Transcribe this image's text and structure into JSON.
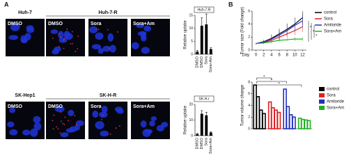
{
  "panel_labels": [
    "A",
    "B"
  ],
  "image_rows": [
    {
      "groups": [
        "Huh-7",
        "Huh-7-R"
      ],
      "labels": [
        "DMSO",
        "DMSO",
        "Sora",
        "Sora+Am"
      ]
    },
    {
      "groups": [
        "SK-Hep1",
        "SK-H-R"
      ],
      "labels": [
        "DMSO",
        "DMSO",
        "Sora",
        "Sora+Am"
      ]
    }
  ],
  "chart_data": [
    {
      "type": "bar",
      "title": "Huh-7-R",
      "y_label": "Relative uptake",
      "categories": [
        "DMSO",
        "DMSO",
        "Sora",
        "Sora+Am"
      ],
      "values": [
        1,
        11,
        11.5,
        2
      ],
      "errors": [
        0.5,
        3,
        4,
        0.5
      ],
      "color": "#000000",
      "ylim": [
        0,
        15
      ],
      "yticks": [
        0,
        5,
        10,
        15
      ]
    },
    {
      "type": "bar",
      "title": "SK-H-r",
      "y_label": "Relative uptake",
      "categories": [
        "DMSO",
        "DMSO",
        "Sora",
        "Sora+Am"
      ],
      "values": [
        1,
        14,
        13,
        2
      ],
      "errors": [
        0.5,
        2,
        2,
        0.5
      ],
      "color": "#000000",
      "ylim": [
        0,
        20
      ],
      "yticks": [
        0,
        10,
        20
      ]
    },
    {
      "type": "line",
      "x_label": "Day",
      "y_label": "Tumor size (Fold change)",
      "x": [
        0,
        2,
        4,
        6,
        8,
        10,
        12
      ],
      "xlim": [
        -1,
        13
      ],
      "xticks": [
        0,
        2,
        4,
        6,
        8,
        10,
        12
      ],
      "ylim": [
        0,
        6
      ],
      "yticks": [
        0,
        2,
        4,
        6
      ],
      "series": [
        {
          "name": "control",
          "color": "#000000",
          "values": [
            1,
            1.3,
            1.8,
            2.5,
            3.2,
            4.0,
            5.0
          ],
          "errors": [
            0.1,
            0.3,
            0.6,
            0.8,
            0.9,
            1.0,
            1.0
          ]
        },
        {
          "name": "Sora",
          "color": "#e02020",
          "values": [
            1,
            1.2,
            1.5,
            2.0,
            2.5,
            3.0,
            3.6
          ],
          "errors": [
            0.1,
            0.2,
            0.4,
            0.5,
            0.6,
            0.7,
            0.8
          ]
        },
        {
          "name": "Amiloride",
          "color": "#2030c0",
          "values": [
            1,
            1.25,
            1.7,
            2.3,
            3.0,
            3.8,
            4.5
          ],
          "errors": [
            0.1,
            0.3,
            0.5,
            0.7,
            0.8,
            0.9,
            1.0
          ]
        },
        {
          "name": "Sora+Am",
          "color": "#20b020",
          "values": [
            1,
            1.1,
            1.3,
            1.5,
            1.6,
            1.7,
            1.7
          ],
          "errors": [
            0.05,
            0.1,
            0.2,
            0.2,
            0.2,
            0.3,
            0.3
          ]
        }
      ],
      "annotations": [
        "*",
        "*",
        "*"
      ]
    },
    {
      "type": "grouped_bar",
      "y_label": "Tumor volume change",
      "ylim": [
        0,
        8
      ],
      "yticks": [
        0,
        2,
        4,
        6,
        8
      ],
      "series": [
        {
          "name": "control",
          "color": "#000000",
          "values": [
            7.5,
            5.5,
            3.2,
            2.6
          ]
        },
        {
          "name": "Sora",
          "color": "#e02020",
          "values": [
            4.6,
            3.6,
            3.2,
            2.8
          ]
        },
        {
          "name": "Amiloride",
          "color": "#2030c0",
          "values": [
            6.8,
            3.8,
            2.4,
            2.0
          ]
        },
        {
          "name": "Sora+Am",
          "color": "#20b020",
          "values": [
            1.8,
            1.6,
            1.5,
            1.4
          ]
        }
      ],
      "annotations": [
        "*",
        "*",
        "*"
      ]
    }
  ]
}
